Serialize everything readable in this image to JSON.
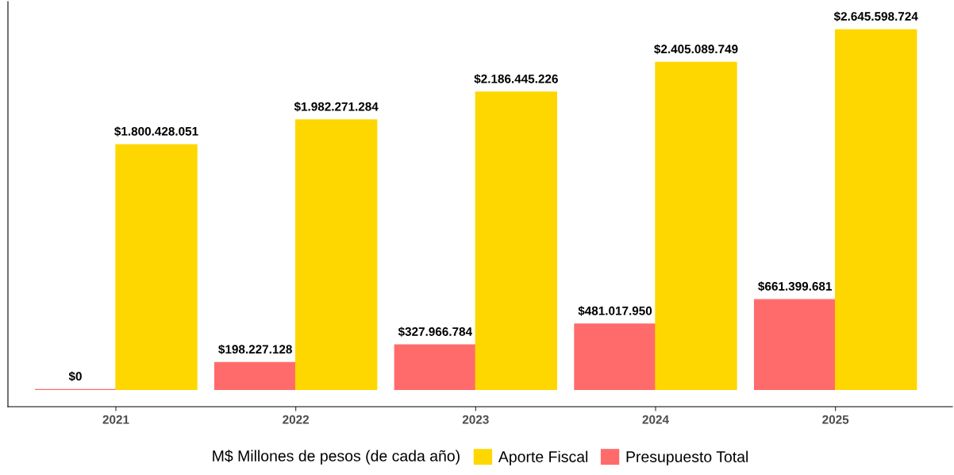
{
  "chart_data": {
    "type": "bar",
    "legend_title": "M$ Millones de pesos (de cada año)",
    "categories": [
      "2021",
      "2022",
      "2023",
      "2024",
      "2025"
    ],
    "series": [
      {
        "name": "Presupuesto Total",
        "color": "#ff6b6b",
        "values": [
          0,
          198227128,
          327966784,
          481017950,
          661399681
        ],
        "value_labels": [
          "$0",
          "$198.227.128",
          "$327.966.784",
          "$481.017.950",
          "$661.399.681"
        ]
      },
      {
        "name": "Aporte Fiscal",
        "color": "#ffd700",
        "values": [
          1800428051,
          1982271284,
          2186445226,
          2405089749,
          2645598724
        ],
        "value_labels": [
          "$1.800.428.051",
          "$1.982.271.284",
          "$2.186.445.226",
          "$2.405.089.749",
          "$2.645.598.724"
        ]
      }
    ],
    "ylim": [
      -126000000,
      2852000000
    ],
    "grid": false,
    "legend": "bottom"
  }
}
